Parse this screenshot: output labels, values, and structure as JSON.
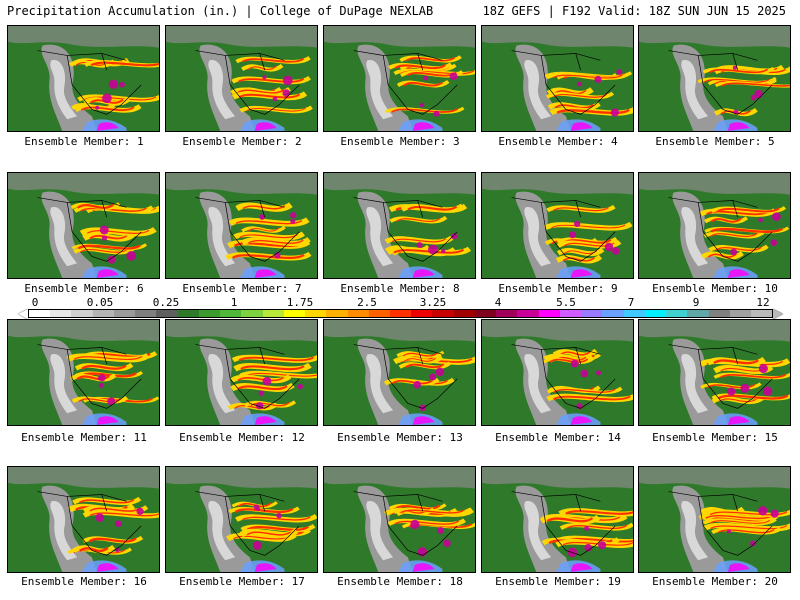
{
  "header": {
    "left_title": "Precipitation Accumulation (in.) | College of DuPage NEXLAB",
    "right_title": "18Z GEFS | F192 Valid: 18Z SUN JUN 15 2025"
  },
  "colorbar": {
    "labels": [
      "0",
      "0.05",
      "0.25",
      "1",
      "1.75",
      "2.5",
      "3.25",
      "4",
      "5.5",
      "7",
      "9",
      "12"
    ],
    "colors": [
      "#ffffff",
      "#e6e6e6",
      "#cfcfcf",
      "#b4b4b4",
      "#9a9a9a",
      "#7f7f7f",
      "#5f5f5f",
      "#2f7a2a",
      "#3c9a2e",
      "#4fb83a",
      "#7fd23f",
      "#b8e83a",
      "#ffff00",
      "#ffd700",
      "#ffb000",
      "#ff8c00",
      "#ff6000",
      "#ff3000",
      "#ee0000",
      "#c80000",
      "#a00000",
      "#800020",
      "#a0005a",
      "#c80098",
      "#ff00ff",
      "#d05cff",
      "#9a7aff",
      "#6aa0ff",
      "#40c8ff",
      "#00f0ff",
      "#40d0d0",
      "#60a8a8",
      "#808080",
      "#a0a0a0",
      "#b9b9b9"
    ]
  },
  "members": [
    {
      "label": "Ensemble Member: 1"
    },
    {
      "label": "Ensemble Member: 2"
    },
    {
      "label": "Ensemble Member: 3"
    },
    {
      "label": "Ensemble Member: 4"
    },
    {
      "label": "Ensemble Member: 5"
    },
    {
      "label": "Ensemble Member: 6"
    },
    {
      "label": "Ensemble Member: 7"
    },
    {
      "label": "Ensemble Member: 8"
    },
    {
      "label": "Ensemble Member: 9"
    },
    {
      "label": "Ensemble Member: 10"
    },
    {
      "label": "Ensemble Member: 11"
    },
    {
      "label": "Ensemble Member: 12"
    },
    {
      "label": "Ensemble Member: 13"
    },
    {
      "label": "Ensemble Member: 14"
    },
    {
      "label": "Ensemble Member: 15"
    },
    {
      "label": "Ensemble Member: 16"
    },
    {
      "label": "Ensemble Member: 17"
    },
    {
      "label": "Ensemble Member: 18"
    },
    {
      "label": "Ensemble Member: 19"
    },
    {
      "label": "Ensemble Member: 20"
    }
  ]
}
